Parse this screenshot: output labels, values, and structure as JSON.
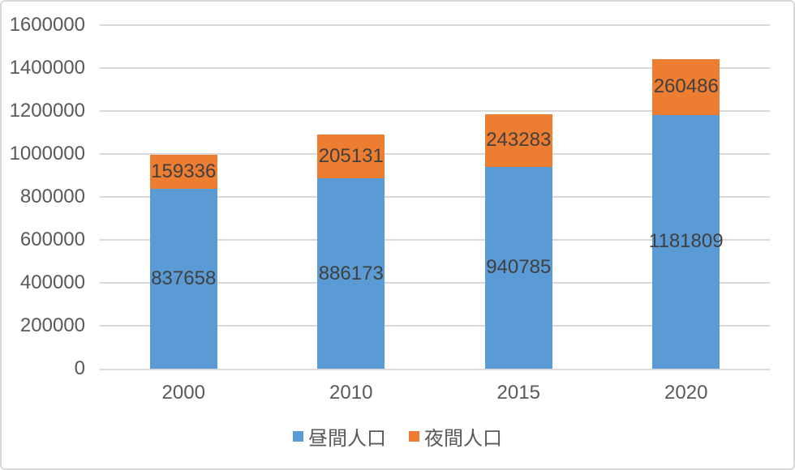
{
  "chart_data": {
    "type": "bar",
    "stacked": true,
    "title": "",
    "xlabel": "",
    "ylabel": "",
    "categories": [
      "2000",
      "2010",
      "2015",
      "2020"
    ],
    "series": [
      {
        "name": "昼間人口",
        "color": "#5B9BD5",
        "values": [
          837658,
          886173,
          940785,
          1181809
        ]
      },
      {
        "name": "夜間人口",
        "color": "#ED7D31",
        "values": [
          159336,
          205131,
          243283,
          260486
        ]
      }
    ],
    "ylim": [
      0,
      1600000
    ],
    "ytick_step": 200000,
    "yticks": [
      "0",
      "200000",
      "400000",
      "600000",
      "800000",
      "1000000",
      "1200000",
      "1400000",
      "1600000"
    ],
    "grid": true,
    "legend_position": "bottom",
    "colors": {
      "gridline": "#D9D9D9",
      "frame_border": "#D9D9D9",
      "axis_text": "#595959",
      "data_label_text": "#404040"
    }
  }
}
